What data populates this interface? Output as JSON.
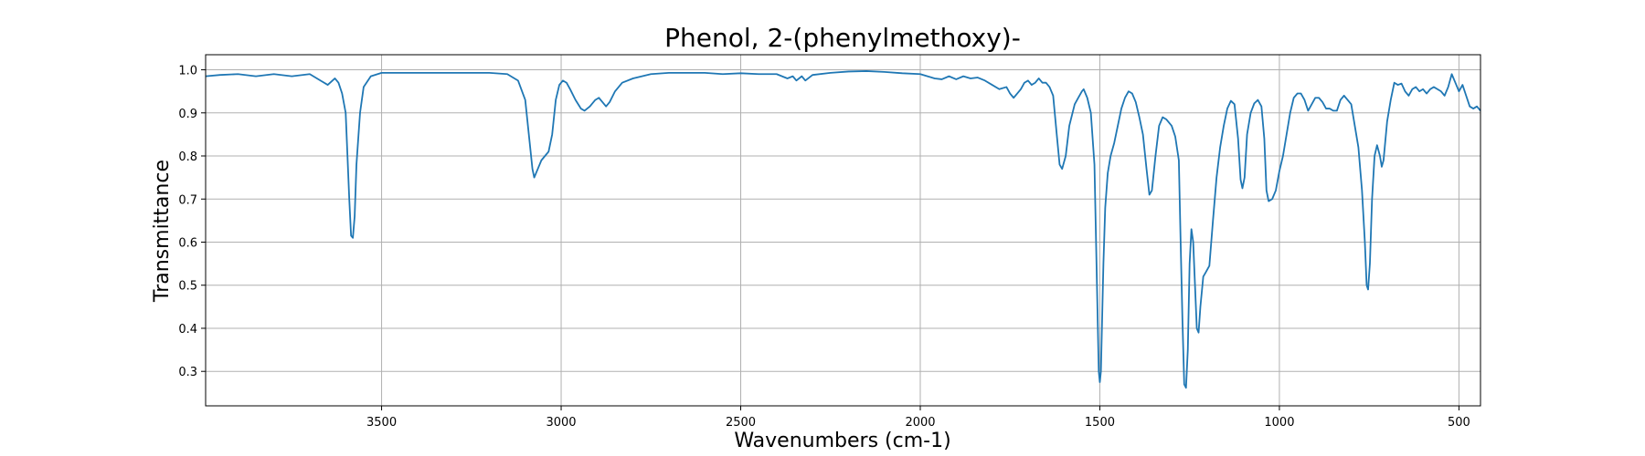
{
  "chart_data": {
    "type": "line",
    "title": "Phenol, 2-(phenylmethoxy)-",
    "xlabel": "Wavenumbers (cm-1)",
    "ylabel": "Transmittance",
    "xlim": [
      3990,
      440
    ],
    "ylim": [
      0.22,
      1.035
    ],
    "x_reversed": true,
    "grid": true,
    "x_ticks": [
      3500,
      3000,
      2500,
      2000,
      1500,
      1000,
      500
    ],
    "x_tick_labels": [
      "3500",
      "3000",
      "2500",
      "2000",
      "1500",
      "1000",
      "500"
    ],
    "y_ticks": [
      0.3,
      0.4,
      0.5,
      0.6,
      0.7,
      0.8,
      0.9,
      1.0
    ],
    "y_tick_labels": [
      "0.3",
      "0.4",
      "0.5",
      "0.6",
      "0.7",
      "0.8",
      "0.9",
      "1.0"
    ],
    "line_color": "#1f77b4",
    "series": [
      {
        "points": [
          [
            3990,
            0.985
          ],
          [
            3950,
            0.988
          ],
          [
            3900,
            0.99
          ],
          [
            3850,
            0.985
          ],
          [
            3800,
            0.99
          ],
          [
            3750,
            0.985
          ],
          [
            3700,
            0.99
          ],
          [
            3670,
            0.975
          ],
          [
            3650,
            0.965
          ],
          [
            3630,
            0.98
          ],
          [
            3620,
            0.97
          ],
          [
            3610,
            0.945
          ],
          [
            3600,
            0.9
          ],
          [
            3595,
            0.8
          ],
          [
            3590,
            0.7
          ],
          [
            3585,
            0.615
          ],
          [
            3580,
            0.61
          ],
          [
            3575,
            0.66
          ],
          [
            3570,
            0.78
          ],
          [
            3560,
            0.9
          ],
          [
            3550,
            0.96
          ],
          [
            3530,
            0.985
          ],
          [
            3500,
            0.993
          ],
          [
            3400,
            0.993
          ],
          [
            3300,
            0.993
          ],
          [
            3200,
            0.993
          ],
          [
            3150,
            0.99
          ],
          [
            3120,
            0.975
          ],
          [
            3100,
            0.93
          ],
          [
            3090,
            0.85
          ],
          [
            3080,
            0.77
          ],
          [
            3075,
            0.75
          ],
          [
            3065,
            0.77
          ],
          [
            3055,
            0.79
          ],
          [
            3045,
            0.8
          ],
          [
            3035,
            0.81
          ],
          [
            3025,
            0.85
          ],
          [
            3015,
            0.93
          ],
          [
            3005,
            0.965
          ],
          [
            2995,
            0.975
          ],
          [
            2985,
            0.97
          ],
          [
            2975,
            0.955
          ],
          [
            2960,
            0.93
          ],
          [
            2945,
            0.91
          ],
          [
            2935,
            0.905
          ],
          [
            2920,
            0.915
          ],
          [
            2905,
            0.93
          ],
          [
            2895,
            0.935
          ],
          [
            2885,
            0.925
          ],
          [
            2875,
            0.915
          ],
          [
            2865,
            0.925
          ],
          [
            2850,
            0.95
          ],
          [
            2830,
            0.97
          ],
          [
            2800,
            0.98
          ],
          [
            2750,
            0.99
          ],
          [
            2700,
            0.993
          ],
          [
            2650,
            0.993
          ],
          [
            2600,
            0.993
          ],
          [
            2550,
            0.99
          ],
          [
            2500,
            0.992
          ],
          [
            2450,
            0.99
          ],
          [
            2400,
            0.99
          ],
          [
            2370,
            0.98
          ],
          [
            2355,
            0.985
          ],
          [
            2345,
            0.975
          ],
          [
            2330,
            0.985
          ],
          [
            2320,
            0.975
          ],
          [
            2300,
            0.988
          ],
          [
            2250,
            0.993
          ],
          [
            2200,
            0.996
          ],
          [
            2150,
            0.997
          ],
          [
            2100,
            0.995
          ],
          [
            2050,
            0.992
          ],
          [
            2000,
            0.99
          ],
          [
            1980,
            0.985
          ],
          [
            1960,
            0.98
          ],
          [
            1940,
            0.978
          ],
          [
            1920,
            0.985
          ],
          [
            1900,
            0.978
          ],
          [
            1880,
            0.985
          ],
          [
            1860,
            0.98
          ],
          [
            1840,
            0.982
          ],
          [
            1820,
            0.975
          ],
          [
            1800,
            0.965
          ],
          [
            1780,
            0.955
          ],
          [
            1760,
            0.96
          ],
          [
            1750,
            0.945
          ],
          [
            1740,
            0.935
          ],
          [
            1730,
            0.945
          ],
          [
            1720,
            0.955
          ],
          [
            1710,
            0.97
          ],
          [
            1700,
            0.975
          ],
          [
            1690,
            0.965
          ],
          [
            1680,
            0.97
          ],
          [
            1670,
            0.98
          ],
          [
            1660,
            0.97
          ],
          [
            1650,
            0.97
          ],
          [
            1640,
            0.96
          ],
          [
            1630,
            0.94
          ],
          [
            1620,
            0.85
          ],
          [
            1612,
            0.78
          ],
          [
            1605,
            0.77
          ],
          [
            1595,
            0.8
          ],
          [
            1585,
            0.87
          ],
          [
            1570,
            0.92
          ],
          [
            1560,
            0.935
          ],
          [
            1550,
            0.95
          ],
          [
            1545,
            0.955
          ],
          [
            1535,
            0.935
          ],
          [
            1525,
            0.9
          ],
          [
            1515,
            0.78
          ],
          [
            1508,
            0.5
          ],
          [
            1503,
            0.3
          ],
          [
            1500,
            0.275
          ],
          [
            1497,
            0.3
          ],
          [
            1490,
            0.55
          ],
          [
            1485,
            0.68
          ],
          [
            1478,
            0.76
          ],
          [
            1470,
            0.8
          ],
          [
            1460,
            0.83
          ],
          [
            1450,
            0.87
          ],
          [
            1440,
            0.91
          ],
          [
            1430,
            0.935
          ],
          [
            1420,
            0.95
          ],
          [
            1410,
            0.945
          ],
          [
            1400,
            0.925
          ],
          [
            1390,
            0.89
          ],
          [
            1380,
            0.85
          ],
          [
            1370,
            0.77
          ],
          [
            1362,
            0.71
          ],
          [
            1355,
            0.72
          ],
          [
            1345,
            0.8
          ],
          [
            1335,
            0.87
          ],
          [
            1325,
            0.89
          ],
          [
            1315,
            0.885
          ],
          [
            1300,
            0.87
          ],
          [
            1290,
            0.845
          ],
          [
            1280,
            0.79
          ],
          [
            1275,
            0.6
          ],
          [
            1270,
            0.42
          ],
          [
            1265,
            0.27
          ],
          [
            1260,
            0.262
          ],
          [
            1255,
            0.35
          ],
          [
            1250,
            0.55
          ],
          [
            1245,
            0.63
          ],
          [
            1240,
            0.6
          ],
          [
            1235,
            0.5
          ],
          [
            1230,
            0.4
          ],
          [
            1225,
            0.39
          ],
          [
            1220,
            0.45
          ],
          [
            1212,
            0.52
          ],
          [
            1205,
            0.53
          ],
          [
            1195,
            0.545
          ],
          [
            1185,
            0.65
          ],
          [
            1175,
            0.75
          ],
          [
            1165,
            0.82
          ],
          [
            1155,
            0.87
          ],
          [
            1145,
            0.91
          ],
          [
            1135,
            0.928
          ],
          [
            1125,
            0.92
          ],
          [
            1115,
            0.84
          ],
          [
            1108,
            0.745
          ],
          [
            1103,
            0.725
          ],
          [
            1097,
            0.75
          ],
          [
            1090,
            0.85
          ],
          [
            1080,
            0.9
          ],
          [
            1070,
            0.922
          ],
          [
            1060,
            0.93
          ],
          [
            1050,
            0.915
          ],
          [
            1042,
            0.84
          ],
          [
            1036,
            0.72
          ],
          [
            1030,
            0.695
          ],
          [
            1020,
            0.7
          ],
          [
            1010,
            0.72
          ],
          [
            1000,
            0.765
          ],
          [
            990,
            0.8
          ],
          [
            980,
            0.85
          ],
          [
            970,
            0.9
          ],
          [
            960,
            0.935
          ],
          [
            950,
            0.945
          ],
          [
            940,
            0.945
          ],
          [
            930,
            0.93
          ],
          [
            920,
            0.905
          ],
          [
            910,
            0.92
          ],
          [
            900,
            0.935
          ],
          [
            890,
            0.935
          ],
          [
            880,
            0.925
          ],
          [
            870,
            0.91
          ],
          [
            860,
            0.91
          ],
          [
            850,
            0.905
          ],
          [
            840,
            0.905
          ],
          [
            830,
            0.93
          ],
          [
            820,
            0.94
          ],
          [
            810,
            0.93
          ],
          [
            800,
            0.92
          ],
          [
            790,
            0.87
          ],
          [
            780,
            0.82
          ],
          [
            770,
            0.72
          ],
          [
            762,
            0.6
          ],
          [
            757,
            0.5
          ],
          [
            753,
            0.49
          ],
          [
            748,
            0.55
          ],
          [
            742,
            0.7
          ],
          [
            735,
            0.8
          ],
          [
            728,
            0.825
          ],
          [
            720,
            0.8
          ],
          [
            715,
            0.775
          ],
          [
            710,
            0.79
          ],
          [
            700,
            0.88
          ],
          [
            690,
            0.93
          ],
          [
            680,
            0.97
          ],
          [
            670,
            0.965
          ],
          [
            660,
            0.968
          ],
          [
            650,
            0.95
          ],
          [
            640,
            0.94
          ],
          [
            630,
            0.955
          ],
          [
            620,
            0.96
          ],
          [
            610,
            0.95
          ],
          [
            600,
            0.955
          ],
          [
            590,
            0.945
          ],
          [
            580,
            0.955
          ],
          [
            570,
            0.96
          ],
          [
            560,
            0.955
          ],
          [
            550,
            0.95
          ],
          [
            540,
            0.94
          ],
          [
            530,
            0.96
          ],
          [
            520,
            0.99
          ],
          [
            510,
            0.97
          ],
          [
            500,
            0.95
          ],
          [
            490,
            0.965
          ],
          [
            480,
            0.94
          ],
          [
            470,
            0.915
          ],
          [
            460,
            0.91
          ],
          [
            450,
            0.915
          ],
          [
            440,
            0.905
          ]
        ]
      }
    ]
  }
}
